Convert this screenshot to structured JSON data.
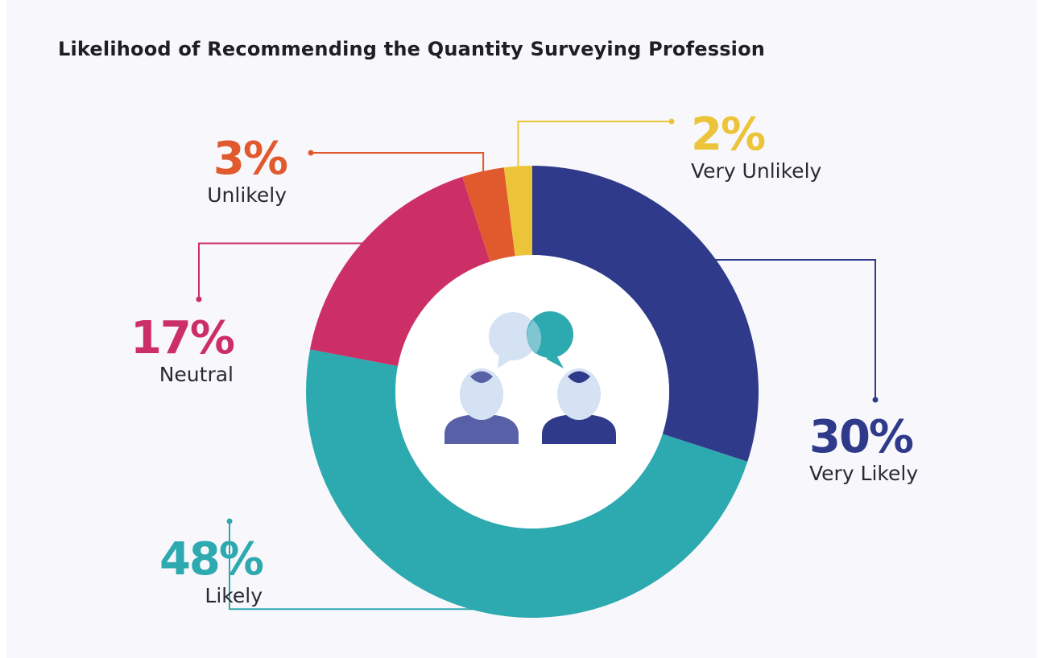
{
  "chart_data": {
    "type": "pie",
    "title": "Likelihood of Recommending the Quantity Surveying Profession",
    "slices": [
      {
        "label": "Very Likely",
        "value": 30,
        "value_label": "30%",
        "color": "#2f3b8a"
      },
      {
        "label": "Likely",
        "value": 48,
        "value_label": "48%",
        "color": "#2daab0"
      },
      {
        "label": "Neutral",
        "value": 17,
        "value_label": "17%",
        "color": "#cc2f66"
      },
      {
        "label": "Unlikely",
        "value": 3,
        "value_label": "3%",
        "color": "#e05a2e"
      },
      {
        "label": "Very Unlikely",
        "value": 2,
        "value_label": "2%",
        "color": "#ecc43a"
      }
    ],
    "legend": "none",
    "center_icon": "two-people-chat-icon"
  }
}
